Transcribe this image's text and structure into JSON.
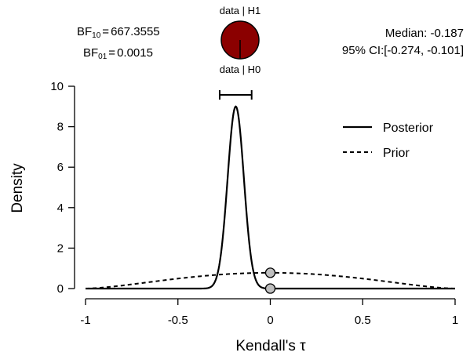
{
  "chart_data": {
    "type": "line",
    "xlabel": "Kendall's τ",
    "ylabel": "Density",
    "xlim": [
      -1,
      1
    ],
    "ylim": [
      0,
      10
    ],
    "xticks": [
      "-1",
      "-0.5",
      "0",
      "0.5",
      "1"
    ],
    "yticks": [
      "0",
      "2",
      "4",
      "6",
      "8",
      "10"
    ],
    "legend_position": "top-right",
    "series": [
      {
        "name": "Posterior",
        "style": "solid",
        "peak_x": -0.187,
        "peak_y": 9.0,
        "sd": 0.044,
        "x": [
          -1,
          -0.35,
          -0.3,
          -0.25,
          -0.22,
          -0.2,
          -0.187,
          -0.17,
          -0.15,
          -0.12,
          -0.1,
          -0.05,
          0,
          1
        ],
        "y": [
          0,
          0.01,
          0.2,
          1.6,
          5.0,
          8.2,
          9.0,
          8.3,
          6.0,
          2.8,
          0.9,
          0.02,
          0,
          0
        ]
      },
      {
        "name": "Prior",
        "style": "dashed",
        "x": [
          -1,
          -0.75,
          -0.5,
          -0.25,
          0,
          0.25,
          0.5,
          0.75,
          1
        ],
        "y": [
          0,
          0.15,
          0.45,
          0.7,
          0.78,
          0.7,
          0.45,
          0.15,
          0
        ]
      }
    ],
    "points": [
      {
        "x": 0,
        "y": 0.78,
        "label": "prior density at 0"
      },
      {
        "x": 0,
        "y": 0.0,
        "label": "posterior density at 0"
      }
    ],
    "credible_interval": {
      "lower": -0.274,
      "upper": -0.101,
      "y": 9.3
    },
    "bf10_label": "BF",
    "bf10_sub": "10",
    "bf10_value": "667.3555",
    "bf01_label": "BF",
    "bf01_sub": "01",
    "bf01_value": "0.0015",
    "median_text": "Median: -0.187",
    "ci_text": "95% CI:[-0.274, -0.101]",
    "pie": {
      "top_label": "data | H1",
      "bottom_label": "data | H0",
      "h1_fraction": 0.9985,
      "h1_color": "#8b0000"
    },
    "colors": {
      "line": "#000000",
      "point_fill": "#bfbfbf",
      "pie_fill": "#8b0000"
    }
  }
}
